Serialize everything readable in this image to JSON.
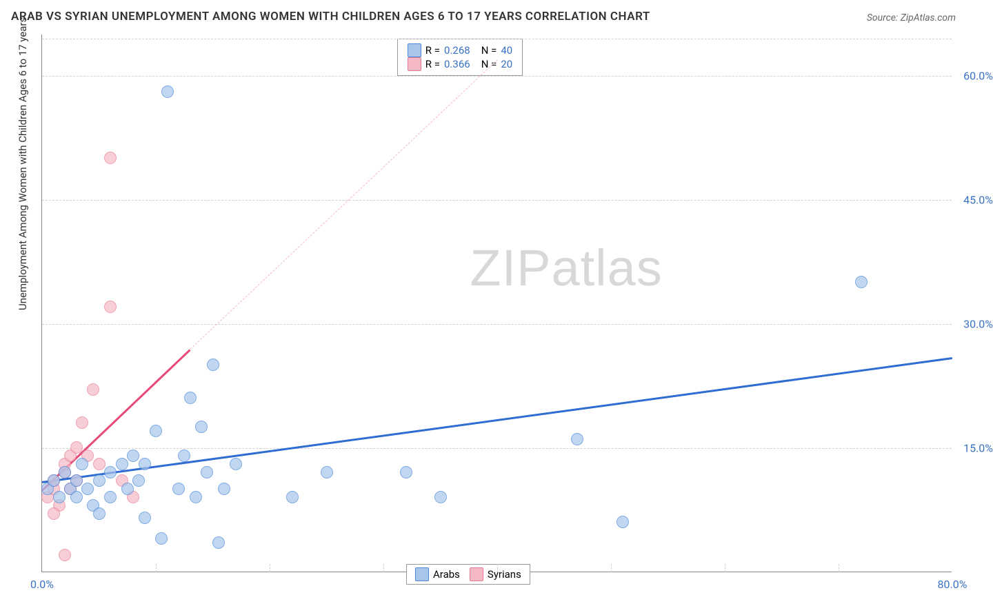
{
  "title": "ARAB VS SYRIAN UNEMPLOYMENT AMONG WOMEN WITH CHILDREN AGES 6 TO 17 YEARS CORRELATION CHART",
  "source": "Source: ZipAtlas.com",
  "y_axis_label": "Unemployment Among Women with Children Ages 6 to 17 years",
  "watermark_bold": "ZIP",
  "watermark_light": "atlas",
  "chart": {
    "type": "scatter",
    "x_range": [
      0,
      80
    ],
    "y_range": [
      0,
      65
    ],
    "x_ticks": [
      {
        "pos": 0,
        "label": "0.0%"
      },
      {
        "pos": 80,
        "label": "80.0%"
      }
    ],
    "x_minor_ticks": [
      10,
      20,
      30,
      40,
      50,
      60,
      70
    ],
    "y_ticks": [
      {
        "pos": 15,
        "label": "15.0%"
      },
      {
        "pos": 30,
        "label": "30.0%"
      },
      {
        "pos": 45,
        "label": "45.0%"
      },
      {
        "pos": 60,
        "label": "60.0%"
      }
    ],
    "series": [
      {
        "name": "Arabs",
        "fill": "#a8c5ec",
        "stroke": "#4a88d8",
        "line_color": "#2e6cd1",
        "line_width": 3,
        "R": "0.268",
        "N": "40",
        "regression": {
          "x1": 0,
          "y1": 11,
          "x2": 80,
          "y2": 26
        },
        "dashed_extension": null,
        "points": [
          [
            0.5,
            10
          ],
          [
            1,
            11
          ],
          [
            1.5,
            9
          ],
          [
            2,
            12
          ],
          [
            2.5,
            10
          ],
          [
            3,
            9
          ],
          [
            3,
            11
          ],
          [
            3.5,
            13
          ],
          [
            4,
            10
          ],
          [
            4.5,
            8
          ],
          [
            5,
            11
          ],
          [
            5,
            7
          ],
          [
            6,
            12
          ],
          [
            6,
            9
          ],
          [
            7,
            13
          ],
          [
            7.5,
            10
          ],
          [
            8,
            14
          ],
          [
            8.5,
            11
          ],
          [
            9,
            6.5
          ],
          [
            9,
            13
          ],
          [
            10,
            17
          ],
          [
            10.5,
            4
          ],
          [
            11,
            58
          ],
          [
            12,
            10
          ],
          [
            12.5,
            14
          ],
          [
            13,
            21
          ],
          [
            13.5,
            9
          ],
          [
            14,
            17.5
          ],
          [
            14.5,
            12
          ],
          [
            15,
            25
          ],
          [
            15.5,
            3.5
          ],
          [
            16,
            10
          ],
          [
            17,
            13
          ],
          [
            22,
            9
          ],
          [
            25,
            12
          ],
          [
            32,
            12
          ],
          [
            35,
            9
          ],
          [
            47,
            16
          ],
          [
            51,
            6
          ],
          [
            72,
            35
          ]
        ]
      },
      {
        "name": "Syrians",
        "fill": "#f5b9c5",
        "stroke": "#e87a94",
        "line_color": "#e84a78",
        "line_width": 3,
        "R": "0.366",
        "N": "20",
        "regression": {
          "x1": 0,
          "y1": 10,
          "x2": 13,
          "y2": 27
        },
        "dashed_extension": {
          "x1": 13,
          "y1": 27,
          "x2": 40,
          "y2": 62
        },
        "points": [
          [
            0.5,
            9
          ],
          [
            1,
            10
          ],
          [
            1,
            11
          ],
          [
            1.5,
            8
          ],
          [
            2,
            12
          ],
          [
            2,
            13
          ],
          [
            2.5,
            10
          ],
          [
            2.5,
            14
          ],
          [
            3,
            11
          ],
          [
            3,
            15
          ],
          [
            3.5,
            18
          ],
          [
            4,
            14
          ],
          [
            4.5,
            22
          ],
          [
            5,
            13
          ],
          [
            6,
            32
          ],
          [
            6,
            50
          ],
          [
            7,
            11
          ],
          [
            8,
            9
          ],
          [
            1,
            7
          ],
          [
            2,
            2
          ]
        ]
      }
    ],
    "background_color": "#ffffff",
    "grid_color": "#d0d0d0",
    "marker_radius": 9,
    "marker_opacity": 0.7
  },
  "legend_top": {
    "r_prefix": "R = ",
    "n_prefix": "N = "
  },
  "legend_bottom": {
    "items": [
      "Arabs",
      "Syrians"
    ]
  }
}
